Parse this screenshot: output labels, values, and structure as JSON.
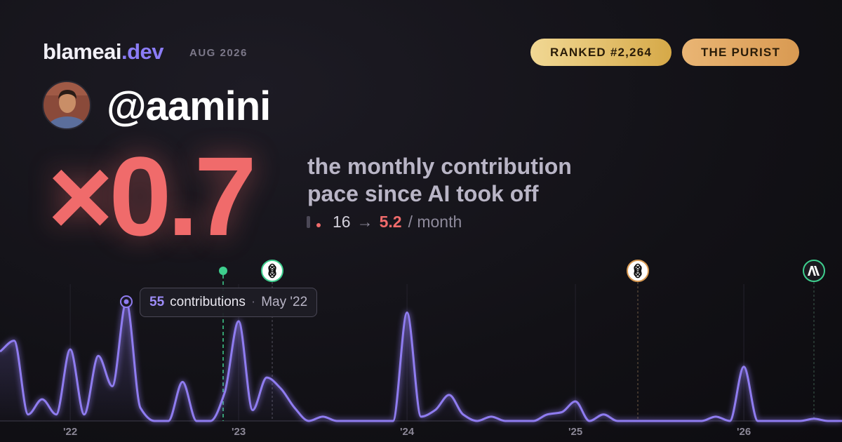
{
  "brand": {
    "name": "blameai",
    "tld": ".dev"
  },
  "date": "AUG 2026",
  "badges": [
    "RANKED #2,264",
    "THE PURIST"
  ],
  "user": {
    "handle": "@aamini"
  },
  "multiplier": "×0.7",
  "headline": "the monthly contribution pace since AI took off",
  "pace": {
    "before": 16,
    "arrow": "→",
    "after": 5.2,
    "unit": "/ month"
  },
  "tooltip": {
    "label": "contributions",
    "separator": "·",
    "date": "May '22"
  },
  "chart_data": {
    "type": "line",
    "color": "#8f7cf0",
    "x": [
      2021.583,
      2021.667,
      2021.75,
      2021.833,
      2021.917,
      2022,
      2022.083,
      2022.167,
      2022.25,
      2022.333,
      2022.417,
      2022.5,
      2022.583,
      2022.667,
      2022.75,
      2022.833,
      2022.917,
      2023,
      2023.083,
      2023.167,
      2023.25,
      2023.333,
      2023.417,
      2023.5,
      2023.583,
      2023.667,
      2023.75,
      2023.833,
      2023.917,
      2024,
      2024.083,
      2024.167,
      2024.25,
      2024.333,
      2024.417,
      2024.5,
      2024.583,
      2024.667,
      2024.75,
      2024.833,
      2024.917,
      2025,
      2025.083,
      2025.167,
      2025.25,
      2025.333,
      2025.417,
      2025.5,
      2025.583,
      2025.667,
      2025.75,
      2025.833,
      2025.917,
      2026,
      2026.083,
      2026.167,
      2026.25,
      2026.333,
      2026.417,
      2026.5,
      2026.583
    ],
    "values": [
      32,
      37,
      3,
      10,
      3,
      33,
      3,
      30,
      16,
      55,
      6,
      0,
      0,
      18,
      0,
      0,
      13,
      46,
      5,
      20,
      15,
      6,
      0,
      2,
      0,
      0,
      0,
      0,
      0,
      50,
      2,
      5,
      12,
      3,
      0,
      2,
      0,
      0,
      0,
      3,
      4,
      9,
      0,
      3,
      0,
      0,
      0,
      0,
      0,
      0,
      0,
      2,
      0,
      25,
      0,
      0,
      0,
      0,
      1,
      0,
      0
    ],
    "xlim": [
      2021.583,
      2026.583
    ],
    "ylim": [
      0,
      55
    ],
    "xticks": [
      {
        "value": 2022,
        "label": "'22"
      },
      {
        "value": 2023,
        "label": "'23"
      },
      {
        "value": 2024,
        "label": "'24"
      },
      {
        "value": 2025,
        "label": "'25"
      },
      {
        "value": 2026,
        "label": "'26"
      }
    ],
    "highlight": 9
  }
}
